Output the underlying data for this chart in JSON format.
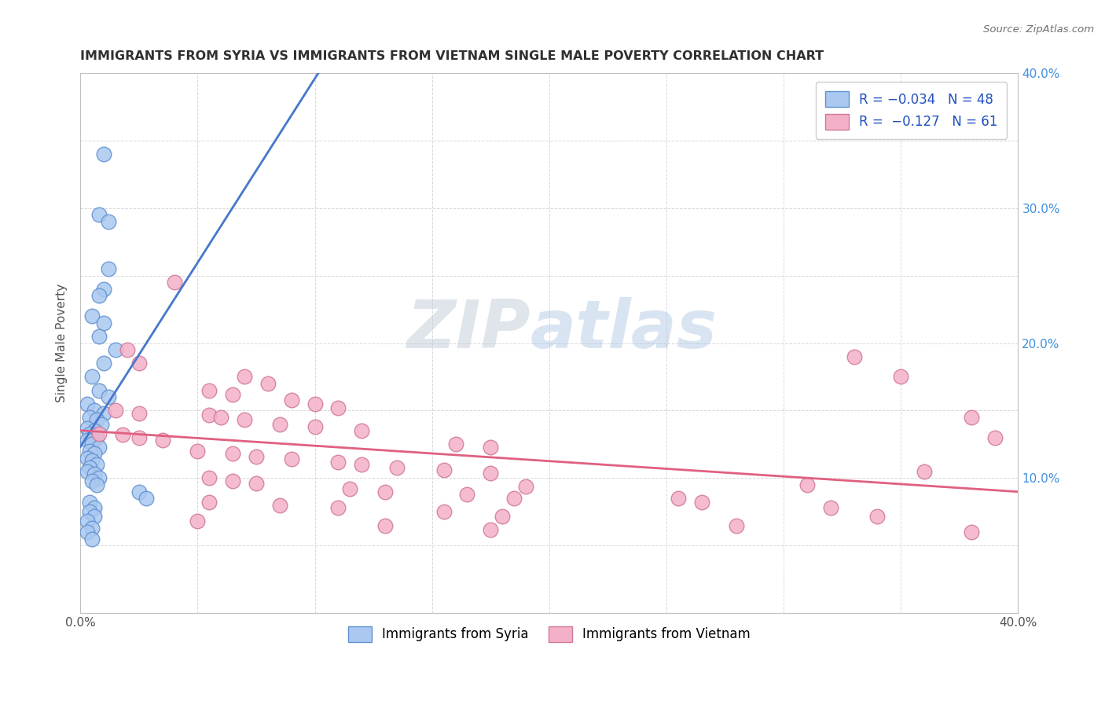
{
  "title": "IMMIGRANTS FROM SYRIA VS IMMIGRANTS FROM VIETNAM SINGLE MALE POVERTY CORRELATION CHART",
  "source": "Source: ZipAtlas.com",
  "ylabel": "Single Male Poverty",
  "xlim": [
    0.0,
    0.4
  ],
  "ylim": [
    0.0,
    0.4
  ],
  "xtick_positions": [
    0.0,
    0.05,
    0.1,
    0.15,
    0.2,
    0.25,
    0.3,
    0.35,
    0.4
  ],
  "xticklabels": [
    "0.0%",
    "",
    "",
    "",
    "",
    "",
    "",
    "",
    "40.0%"
  ],
  "ytick_positions": [
    0.0,
    0.05,
    0.1,
    0.15,
    0.2,
    0.25,
    0.3,
    0.35,
    0.4
  ],
  "yticklabels_right": [
    "",
    "",
    "10.0%",
    "",
    "20.0%",
    "",
    "30.0%",
    "",
    "40.0%"
  ],
  "watermark_zip": "ZIP",
  "watermark_atlas": "atlas",
  "syria_color": "#aac8f0",
  "syria_edge": "#6090d0",
  "vietnam_color": "#f4b0c8",
  "vietnam_edge": "#d07898",
  "syria_line_color": "#4878cc",
  "syria_dash_color": "#80aae0",
  "vietnam_line_color": "#e06080",
  "background_color": "#ffffff",
  "grid_color": "#d0d0d0",
  "title_color": "#303030",
  "axis_color": "#505050",
  "right_axis_color": "#4090e0",
  "syria_scatter": [
    [
      0.01,
      0.34
    ],
    [
      0.008,
      0.295
    ],
    [
      0.012,
      0.29
    ],
    [
      0.012,
      0.255
    ],
    [
      0.01,
      0.24
    ],
    [
      0.008,
      0.235
    ],
    [
      0.005,
      0.22
    ],
    [
      0.01,
      0.215
    ],
    [
      0.008,
      0.205
    ],
    [
      0.015,
      0.195
    ],
    [
      0.01,
      0.185
    ],
    [
      0.005,
      0.175
    ],
    [
      0.008,
      0.165
    ],
    [
      0.012,
      0.16
    ],
    [
      0.003,
      0.155
    ],
    [
      0.006,
      0.15
    ],
    [
      0.01,
      0.148
    ],
    [
      0.004,
      0.145
    ],
    [
      0.007,
      0.143
    ],
    [
      0.009,
      0.14
    ],
    [
      0.003,
      0.137
    ],
    [
      0.006,
      0.135
    ],
    [
      0.004,
      0.133
    ],
    [
      0.007,
      0.13
    ],
    [
      0.003,
      0.128
    ],
    [
      0.005,
      0.125
    ],
    [
      0.008,
      0.123
    ],
    [
      0.004,
      0.12
    ],
    [
      0.006,
      0.118
    ],
    [
      0.003,
      0.115
    ],
    [
      0.005,
      0.113
    ],
    [
      0.007,
      0.11
    ],
    [
      0.004,
      0.108
    ],
    [
      0.003,
      0.105
    ],
    [
      0.006,
      0.103
    ],
    [
      0.008,
      0.1
    ],
    [
      0.005,
      0.098
    ],
    [
      0.007,
      0.095
    ],
    [
      0.025,
      0.09
    ],
    [
      0.028,
      0.085
    ],
    [
      0.004,
      0.082
    ],
    [
      0.006,
      0.078
    ],
    [
      0.004,
      0.075
    ],
    [
      0.006,
      0.072
    ],
    [
      0.003,
      0.068
    ],
    [
      0.005,
      0.063
    ],
    [
      0.003,
      0.06
    ],
    [
      0.005,
      0.055
    ]
  ],
  "vietnam_scatter": [
    [
      0.04,
      0.245
    ],
    [
      0.02,
      0.195
    ],
    [
      0.025,
      0.185
    ],
    [
      0.07,
      0.175
    ],
    [
      0.08,
      0.17
    ],
    [
      0.055,
      0.165
    ],
    [
      0.065,
      0.162
    ],
    [
      0.09,
      0.158
    ],
    [
      0.1,
      0.155
    ],
    [
      0.11,
      0.152
    ],
    [
      0.015,
      0.15
    ],
    [
      0.025,
      0.148
    ],
    [
      0.055,
      0.147
    ],
    [
      0.06,
      0.145
    ],
    [
      0.07,
      0.143
    ],
    [
      0.085,
      0.14
    ],
    [
      0.1,
      0.138
    ],
    [
      0.12,
      0.135
    ],
    [
      0.008,
      0.133
    ],
    [
      0.018,
      0.132
    ],
    [
      0.025,
      0.13
    ],
    [
      0.035,
      0.128
    ],
    [
      0.16,
      0.125
    ],
    [
      0.175,
      0.123
    ],
    [
      0.05,
      0.12
    ],
    [
      0.065,
      0.118
    ],
    [
      0.075,
      0.116
    ],
    [
      0.09,
      0.114
    ],
    [
      0.11,
      0.112
    ],
    [
      0.12,
      0.11
    ],
    [
      0.135,
      0.108
    ],
    [
      0.155,
      0.106
    ],
    [
      0.175,
      0.104
    ],
    [
      0.055,
      0.1
    ],
    [
      0.065,
      0.098
    ],
    [
      0.075,
      0.096
    ],
    [
      0.19,
      0.094
    ],
    [
      0.115,
      0.092
    ],
    [
      0.13,
      0.09
    ],
    [
      0.165,
      0.088
    ],
    [
      0.185,
      0.085
    ],
    [
      0.055,
      0.082
    ],
    [
      0.085,
      0.08
    ],
    [
      0.11,
      0.078
    ],
    [
      0.155,
      0.075
    ],
    [
      0.18,
      0.072
    ],
    [
      0.05,
      0.068
    ],
    [
      0.13,
      0.065
    ],
    [
      0.175,
      0.062
    ],
    [
      0.33,
      0.19
    ],
    [
      0.35,
      0.175
    ],
    [
      0.255,
      0.085
    ],
    [
      0.265,
      0.082
    ],
    [
      0.32,
      0.078
    ],
    [
      0.34,
      0.072
    ],
    [
      0.38,
      0.145
    ],
    [
      0.39,
      0.13
    ],
    [
      0.36,
      0.105
    ],
    [
      0.31,
      0.095
    ],
    [
      0.28,
      0.065
    ],
    [
      0.38,
      0.06
    ]
  ]
}
